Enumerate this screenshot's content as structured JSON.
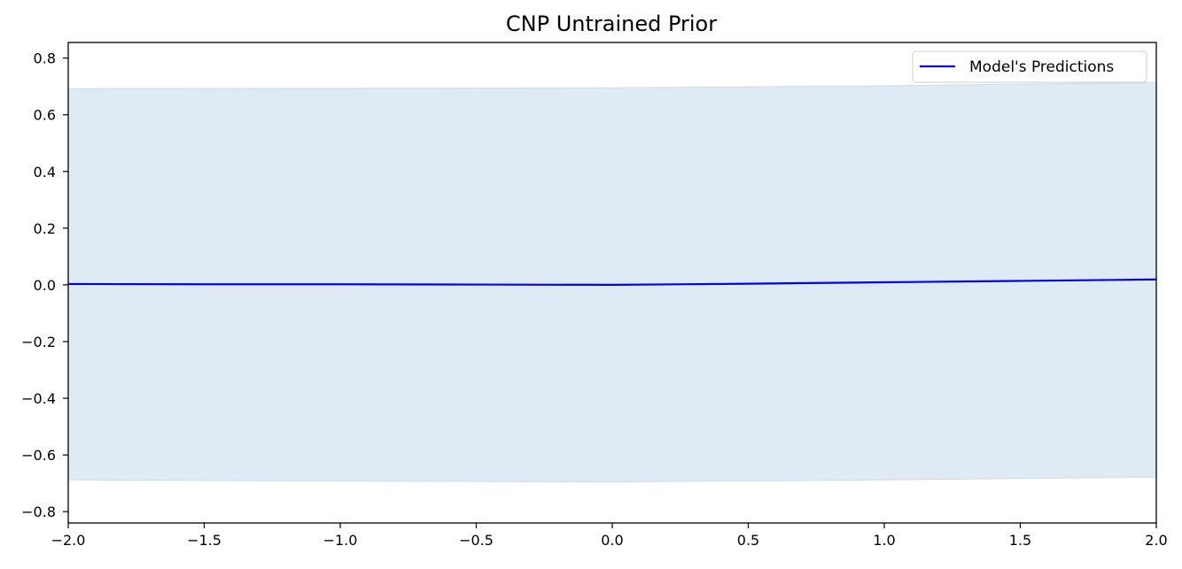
{
  "chart_data": {
    "type": "line",
    "title": "CNP Untrained Prior",
    "xlabel": "",
    "ylabel": "",
    "xlim": [
      -2.0,
      2.0
    ],
    "ylim": [
      -0.84,
      0.855
    ],
    "xticks": [
      -2.0,
      -1.5,
      -1.0,
      -0.5,
      0.0,
      0.5,
      1.0,
      1.5,
      2.0
    ],
    "xtick_labels": [
      "−2.0",
      "−1.5",
      "−1.0",
      "−0.5",
      "0.0",
      "0.5",
      "1.0",
      "1.5",
      "2.0"
    ],
    "yticks": [
      -0.8,
      -0.6,
      -0.4,
      -0.2,
      0.0,
      0.2,
      0.4,
      0.6,
      0.8
    ],
    "ytick_labels": [
      "−0.8",
      "−0.6",
      "−0.4",
      "−0.2",
      "0.0",
      "0.2",
      "0.4",
      "0.6",
      "0.8"
    ],
    "grid": false,
    "legend_position": "top-right",
    "series": [
      {
        "name": "Model's Predictions",
        "color": "#0000ee",
        "x": [
          -2.0,
          -1.5,
          -1.0,
          -0.5,
          0.0,
          0.5,
          1.0,
          1.5,
          2.0
        ],
        "y": [
          0.003,
          0.002,
          0.002,
          0.001,
          0.0,
          0.004,
          0.009,
          0.014,
          0.019
        ]
      }
    ],
    "band": {
      "color": "#deeaf4",
      "x": [
        -2.0,
        -1.0,
        0.0,
        1.0,
        2.0
      ],
      "upper": [
        0.692,
        0.693,
        0.695,
        0.702,
        0.714
      ],
      "lower": [
        -0.688,
        -0.692,
        -0.695,
        -0.688,
        -0.678
      ]
    }
  }
}
